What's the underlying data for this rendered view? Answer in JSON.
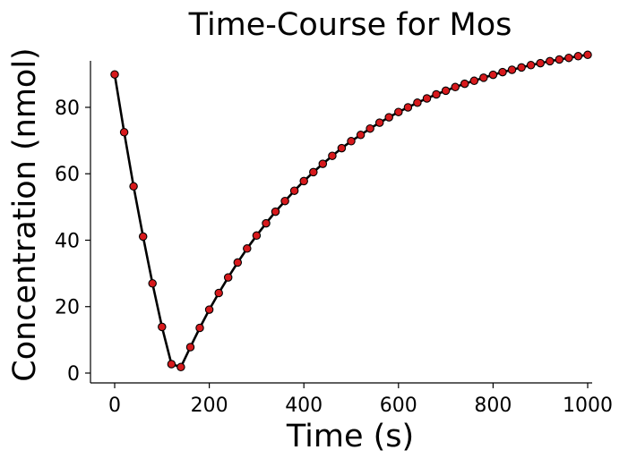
{
  "chart_data": {
    "type": "line",
    "title": "Time-Course for Mos",
    "xlabel": "Time (s)",
    "ylabel": "Concentration (nmol)",
    "xlim": [
      0,
      1000
    ],
    "ylim": [
      0,
      94
    ],
    "xticks": [
      0,
      200,
      400,
      600,
      800,
      1000
    ],
    "yticks": [
      0,
      20,
      40,
      60,
      80
    ],
    "grid": false,
    "legend": "none",
    "series": [
      {
        "line_color": "#000000",
        "marker_color": "#d7191c",
        "marker_edge_color": "#000000",
        "x": [
          0,
          20,
          40,
          60,
          80,
          100,
          120,
          140,
          160,
          180,
          200,
          220,
          240,
          260,
          280,
          300,
          320,
          340,
          360,
          380,
          400,
          420,
          440,
          460,
          480,
          500,
          520,
          540,
          560,
          580,
          600,
          620,
          640,
          660,
          680,
          700,
          720,
          740,
          760,
          780,
          800,
          820,
          840,
          860,
          880,
          900,
          920,
          940,
          960,
          980,
          1000
        ],
        "y": [
          89.9,
          72.5,
          56.2,
          41.1,
          27.0,
          13.9,
          2.7,
          1.8,
          7.8,
          13.6,
          19.1,
          24.1,
          28.8,
          33.3,
          37.5,
          41.4,
          45.1,
          48.6,
          51.8,
          54.9,
          57.8,
          60.5,
          63.0,
          65.4,
          67.7,
          69.8,
          71.7,
          73.6,
          75.4,
          77.0,
          78.6,
          80.0,
          81.4,
          82.7,
          83.9,
          85.0,
          86.1,
          87.1,
          88.0,
          88.9,
          89.8,
          90.6,
          91.3,
          92.0,
          92.7,
          93.3,
          93.9,
          94.4,
          94.9,
          95.4,
          95.8
        ]
      }
    ]
  }
}
